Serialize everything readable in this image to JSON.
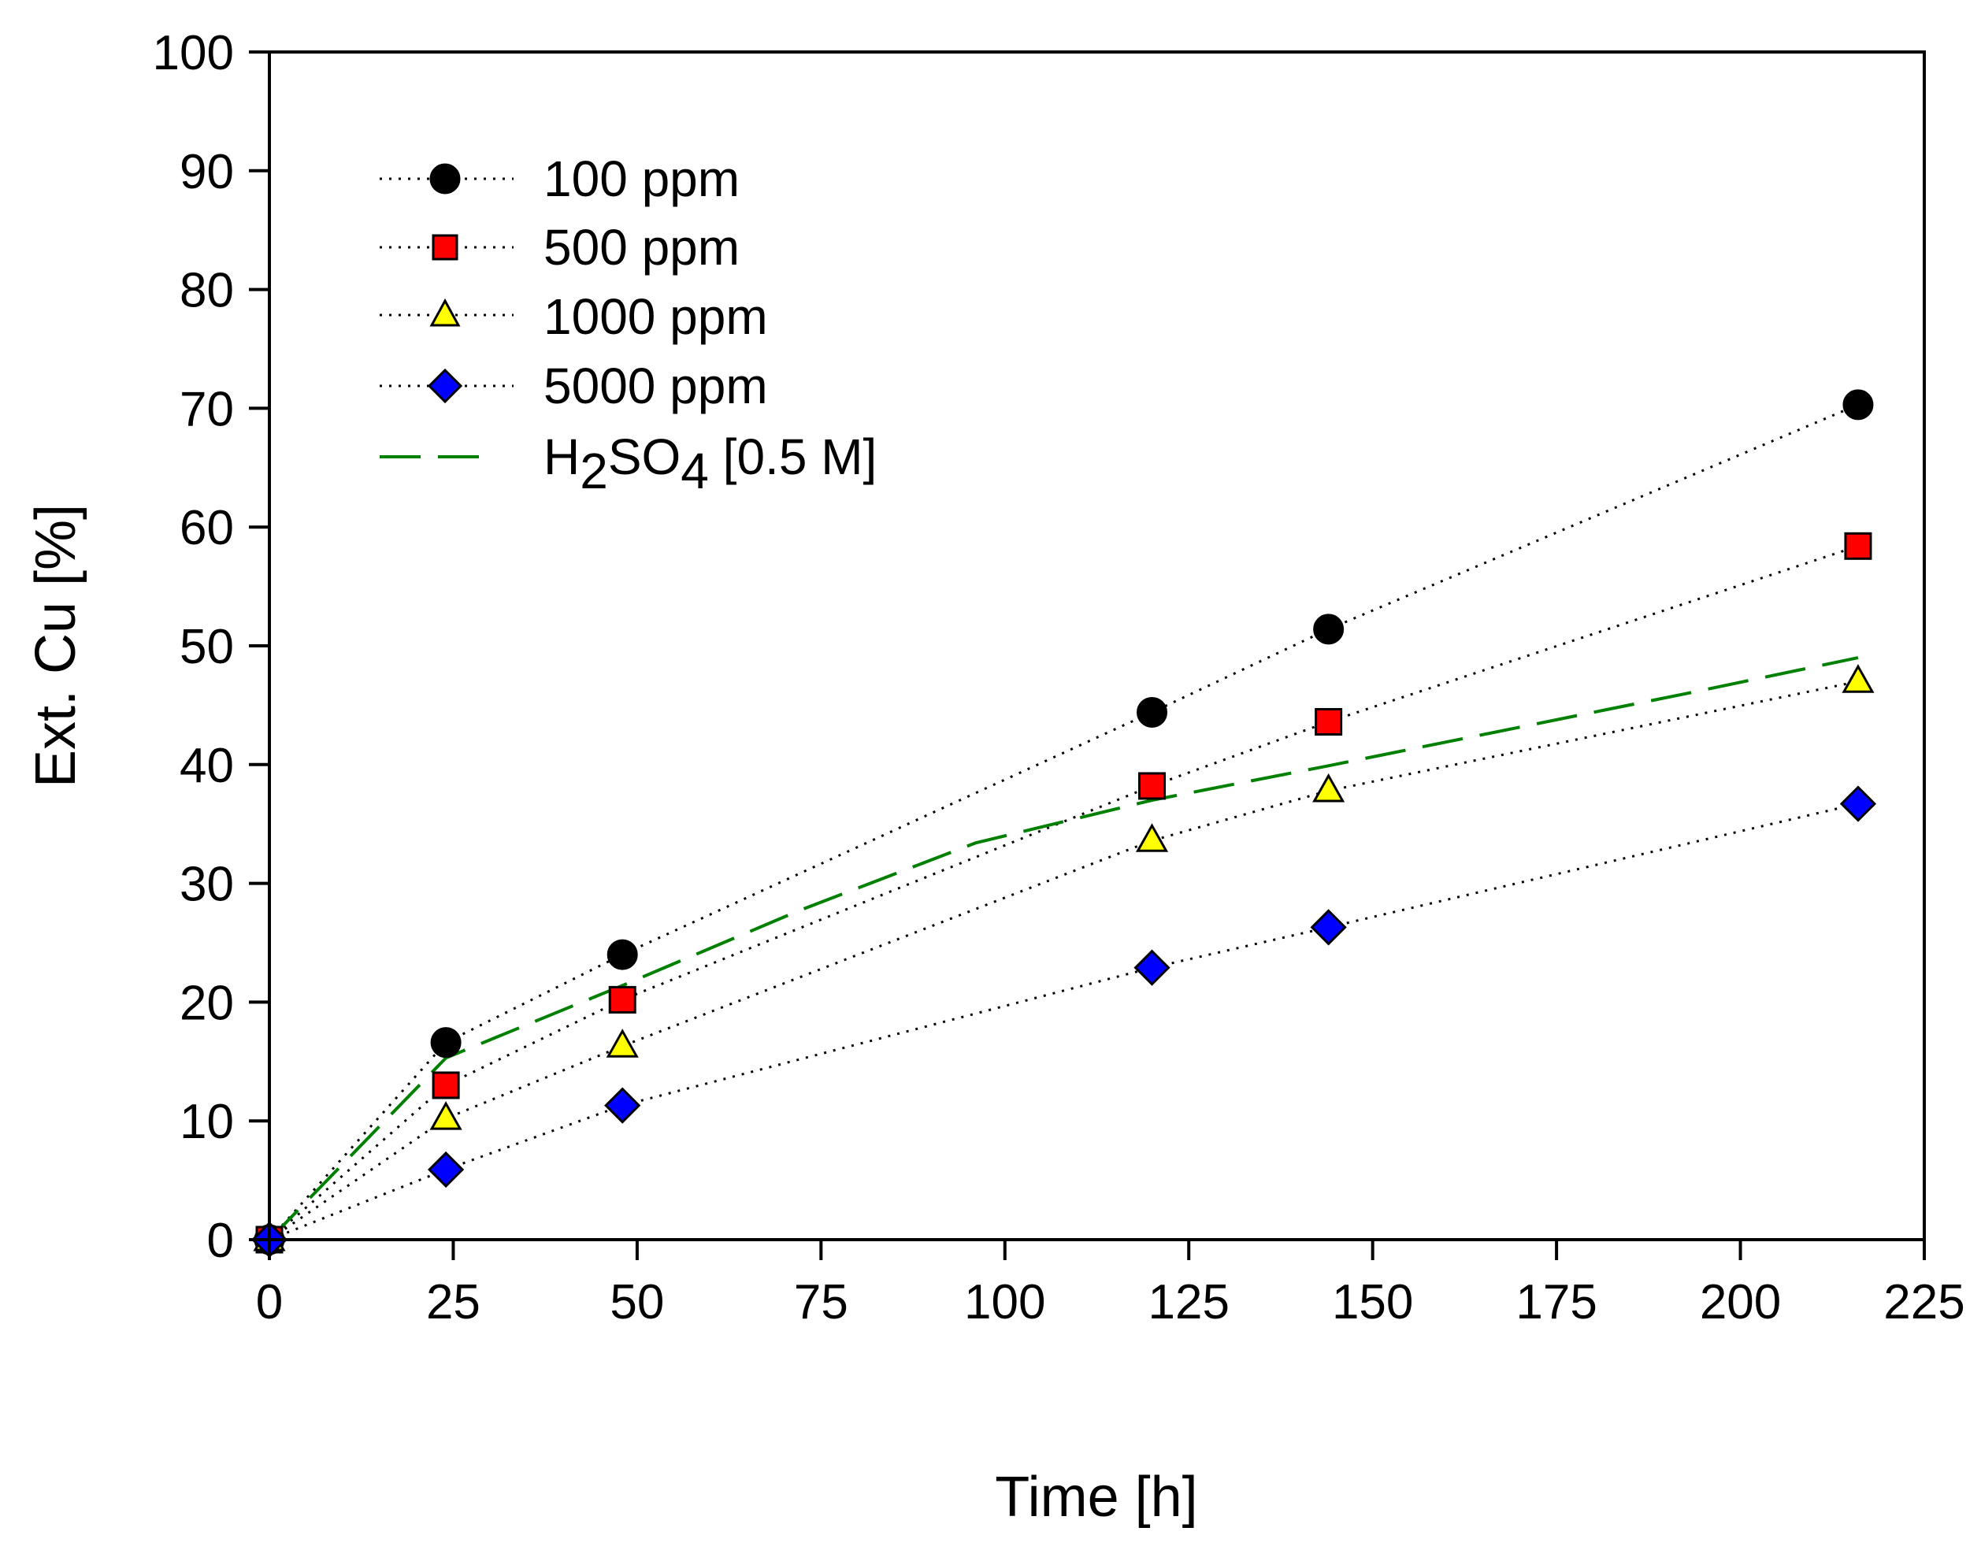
{
  "chart_data": {
    "type": "line",
    "title": "",
    "xlabel": "Time [h]",
    "ylabel": "Ext. Cu [%]",
    "xlim": [
      0,
      225
    ],
    "ylim": [
      0,
      100
    ],
    "xticks": [
      0,
      25,
      50,
      75,
      100,
      125,
      150,
      175,
      200,
      225
    ],
    "yticks": [
      0,
      10,
      20,
      30,
      40,
      50,
      60,
      70,
      80,
      90,
      100
    ],
    "xtick_labels": [
      "0",
      "25",
      "50",
      "75",
      "100",
      "125",
      "150",
      "175",
      "200",
      "225"
    ],
    "ytick_labels": [
      "0",
      "10",
      "20",
      "30",
      "40",
      "50",
      "60",
      "70",
      "80",
      "90",
      "100"
    ],
    "grid": false,
    "legend_position": "top-left",
    "series": [
      {
        "name": "100 ppm",
        "marker": "circle",
        "color": "#000000",
        "line_style": "dotted",
        "x": [
          0,
          24,
          48,
          120,
          144,
          216
        ],
        "y": [
          0,
          16.6,
          24.0,
          44.4,
          51.4,
          70.3
        ]
      },
      {
        "name": "500 ppm",
        "marker": "square",
        "color": "#ff0000",
        "line_style": "dotted",
        "x": [
          0,
          24,
          48,
          120,
          144,
          216
        ],
        "y": [
          0,
          13.0,
          20.2,
          38.2,
          43.6,
          58.4
        ]
      },
      {
        "name": "1000 ppm",
        "marker": "triangle",
        "color": "#ffff00",
        "line_style": "dotted",
        "x": [
          0,
          24,
          48,
          120,
          144,
          216
        ],
        "y": [
          0,
          10.2,
          16.3,
          33.6,
          37.8,
          47.0
        ]
      },
      {
        "name": "5000 ppm",
        "marker": "diamond",
        "color": "#0000ff",
        "line_style": "dotted",
        "x": [
          0,
          24,
          48,
          120,
          144,
          216
        ],
        "y": [
          0,
          5.9,
          11.3,
          22.9,
          26.3,
          36.7
        ]
      },
      {
        "name": "H2SO4 [0.5 M]",
        "legend_main": "H",
        "legend_sub1": "2",
        "legend_mid": "SO",
        "legend_sub2": "4",
        "legend_tail": " [0.5 M]",
        "marker": "none",
        "color": "#008000",
        "line_style": "dashed",
        "x": [
          0,
          24,
          48,
          72,
          96,
          120,
          144,
          168,
          192,
          216
        ],
        "y": [
          0,
          15.3,
          21.4,
          27.7,
          33.4,
          37.0,
          39.9,
          42.9,
          45.9,
          49.0
        ]
      }
    ]
  }
}
